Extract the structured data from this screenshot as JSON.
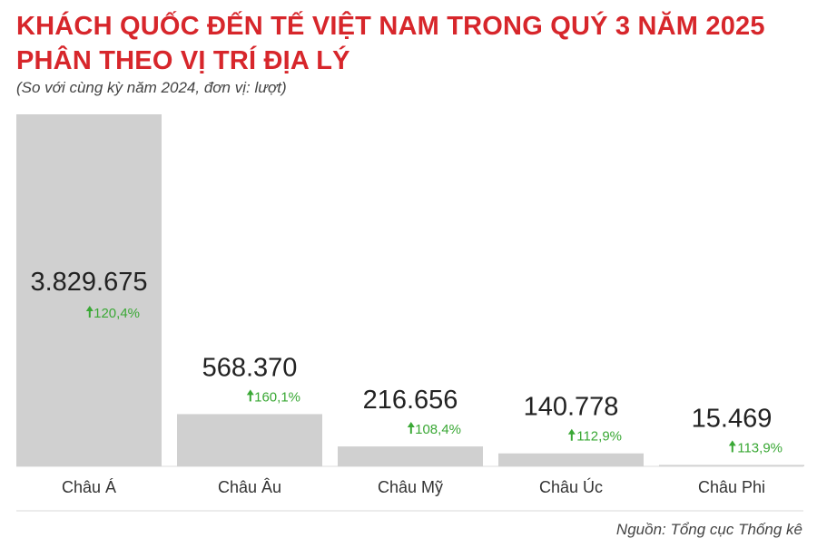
{
  "header": {
    "title_line1": "KHÁCH QUỐC ĐẾN TẾ VIỆT NAM TRONG QUÝ 3 NĂM 2025",
    "title_line2": "PHÂN THEO VỊ TRÍ ĐỊA LÝ",
    "subtitle": "(So với cùng kỳ năm 2024, đơn vị: lượt)"
  },
  "footer": {
    "source": "Nguồn: Tổng cục Thống kê"
  },
  "colors": {
    "title": "#d7262b",
    "bar": "#d0d0d0",
    "growth": "#3aa835",
    "value_text": "#222222",
    "label_text": "#333333"
  },
  "chart_data": {
    "type": "bar",
    "categories": [
      "Châu Á",
      "Châu Âu",
      "Châu Mỹ",
      "Châu Úc",
      "Châu Phi"
    ],
    "values": [
      3829675,
      568370,
      216656,
      140778,
      15469
    ],
    "value_labels": [
      "3.829.675",
      "568.370",
      "216.656",
      "140.778",
      "15.469"
    ],
    "growth_labels": [
      "120,4%",
      "160,1%",
      "108,4%",
      "112,9%",
      "113,9%"
    ],
    "growth_icon": "arrow-up-icon",
    "ylim": [
      0,
      3829675
    ],
    "grid": false,
    "legend": "none"
  }
}
